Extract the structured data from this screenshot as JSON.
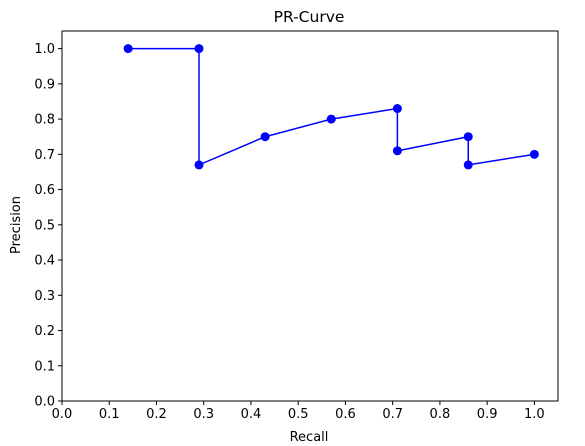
{
  "chart_data": {
    "type": "line",
    "title": "PR-Curve",
    "xlabel": "Recall",
    "ylabel": "Precision",
    "xlim": [
      0.0,
      1.05
    ],
    "ylim": [
      0.0,
      1.05
    ],
    "grid": false,
    "x_ticks": [
      "0.0",
      "0.1",
      "0.2",
      "0.3",
      "0.4",
      "0.5",
      "0.6",
      "0.7",
      "0.8",
      "0.9",
      "1.0"
    ],
    "y_ticks": [
      "0.0",
      "0.1",
      "0.2",
      "0.3",
      "0.4",
      "0.5",
      "0.6",
      "0.7",
      "0.8",
      "0.9",
      "1.0"
    ],
    "series": [
      {
        "color": "#0000ff",
        "marker": "circle",
        "points": [
          {
            "x": 0.14,
            "y": 1.0
          },
          {
            "x": 0.29,
            "y": 1.0
          },
          {
            "x": 0.29,
            "y": 0.67
          },
          {
            "x": 0.43,
            "y": 0.75
          },
          {
            "x": 0.57,
            "y": 0.8
          },
          {
            "x": 0.71,
            "y": 0.83
          },
          {
            "x": 0.71,
            "y": 0.71
          },
          {
            "x": 0.86,
            "y": 0.75
          },
          {
            "x": 0.86,
            "y": 0.67
          },
          {
            "x": 1.0,
            "y": 0.7
          }
        ]
      }
    ]
  }
}
